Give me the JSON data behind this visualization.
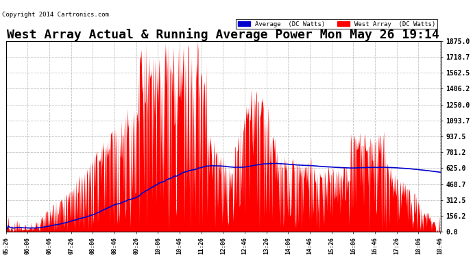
{
  "title": "West Array Actual & Running Average Power Mon May 26 19:14",
  "copyright": "Copyright 2014 Cartronics.com",
  "ylabel_ticks": [
    0.0,
    156.2,
    312.5,
    468.7,
    625.0,
    781.2,
    937.5,
    1093.7,
    1250.0,
    1406.2,
    1562.5,
    1718.7,
    1875.0
  ],
  "ymax": 1875.0,
  "ymin": 0.0,
  "background_color": "#ffffff",
  "plot_bg_color": "#ffffff",
  "grid_color": "#999999",
  "bar_color": "#ff0000",
  "avg_color": "#0000cd",
  "title_fontsize": 13,
  "legend_avg_label": "Average  (DC Watts)",
  "legend_west_label": "West Array  (DC Watts)"
}
